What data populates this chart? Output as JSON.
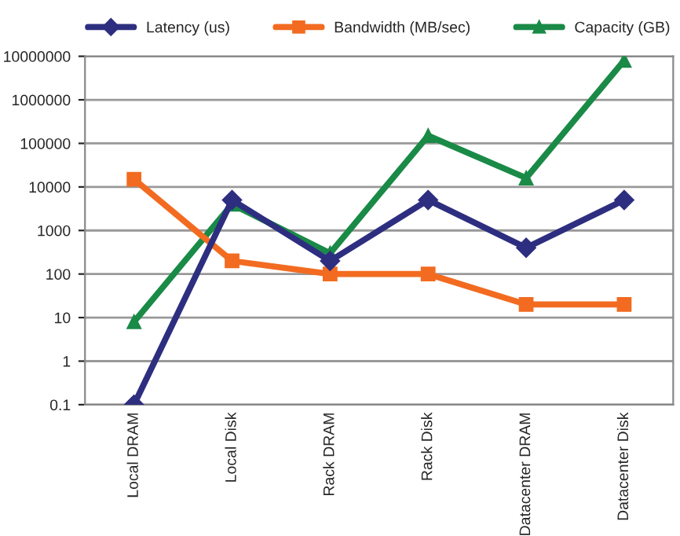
{
  "chart_data": {
    "type": "line",
    "categories": [
      "Local DRAM",
      "Local Disk",
      "Rack DRAM",
      "Rack Disk",
      "Datacenter DRAM",
      "Datacenter Disk"
    ],
    "series": [
      {
        "name": "Latency (us)",
        "color": "#2e2e80",
        "marker": "diamond",
        "values": [
          0.1,
          5000,
          200,
          5000,
          400,
          5000
        ]
      },
      {
        "name": "Bandwidth (MB/sec)",
        "color": "#f26b21",
        "marker": "square",
        "values": [
          15000,
          200,
          100,
          100,
          20,
          20
        ]
      },
      {
        "name": "Capacity (GB)",
        "color": "#1a8a47",
        "marker": "triangle",
        "values": [
          8,
          4000,
          300,
          150000,
          16000,
          8000000
        ]
      }
    ],
    "log": "y",
    "ylim": [
      0.1,
      10000000
    ],
    "yticks": [
      0.1,
      1,
      10,
      100,
      1000,
      10000,
      100000,
      1000000,
      10000000
    ],
    "grid": "y",
    "legend": "top"
  }
}
